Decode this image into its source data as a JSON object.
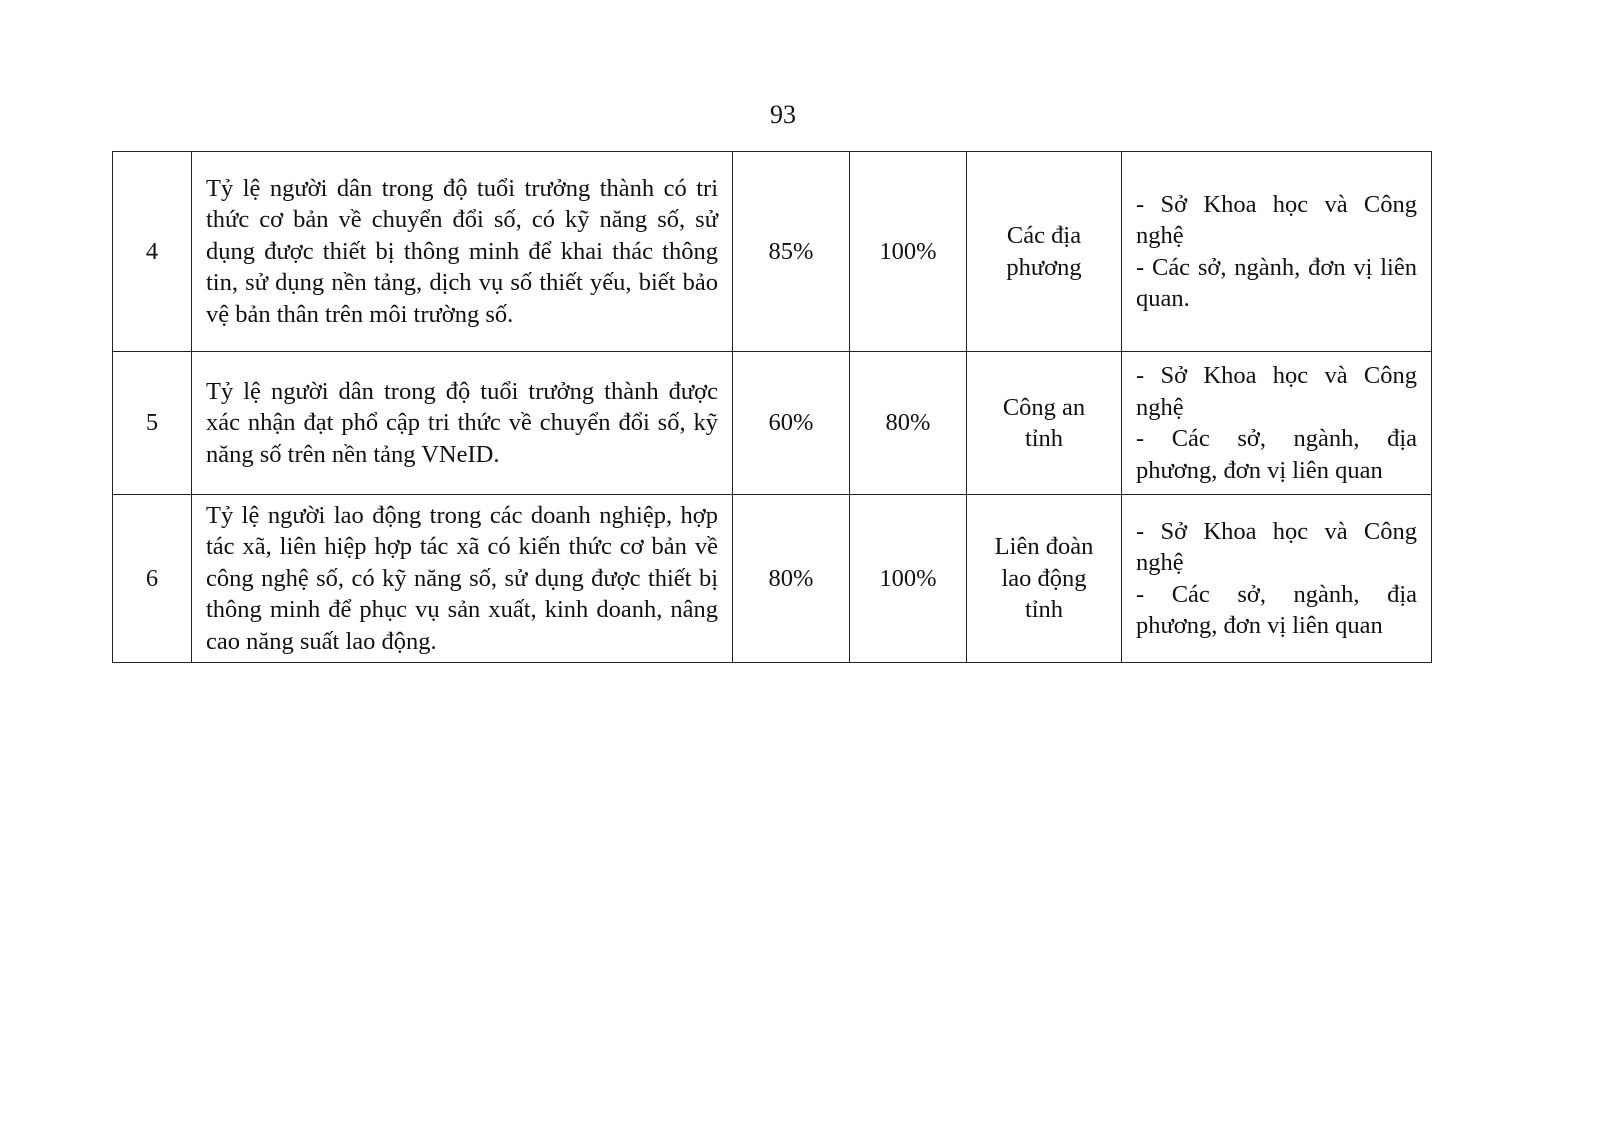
{
  "page_number": "93",
  "rows": [
    {
      "no": "4",
      "indicator": "Tỷ lệ người dân trong độ tuổi trưởng thành có tri thức cơ bản về chuyển đổi số, có kỹ năng số, sử dụng được thiết bị thông minh để khai thác thông tin, sử dụng nền tảng, dịch vụ số thiết yếu, biết bảo vệ bản thân trên môi trường số.",
      "value_1": "85%",
      "value_2": "100%",
      "lead": "Các địa phương",
      "coordinators": [
        "- Sở Khoa học và Công nghệ",
        "- Các sở, ngành, đơn vị liên quan."
      ]
    },
    {
      "no": "5",
      "indicator": "Tỷ lệ người dân trong độ tuổi trưởng thành được xác nhận đạt phổ cập tri thức về chuyển đổi số, kỹ năng số trên nền tảng VNeID.",
      "value_1": "60%",
      "value_2": "80%",
      "lead": "Công an tỉnh",
      "coordinators": [
        "- Sở Khoa học và Công nghệ",
        "- Các sở, ngành, địa phương, đơn vị liên quan"
      ]
    },
    {
      "no": "6",
      "indicator": "Tỷ lệ người lao động trong các doanh nghiệp, hợp tác xã, liên hiệp hợp tác xã có kiến thức cơ bản về công nghệ số, có kỹ năng số, sử dụng được thiết bị thông minh để phục vụ sản xuất, kinh doanh, nâng cao năng suất lao động.",
      "value_1": "80%",
      "value_2": "100%",
      "lead": "Liên đoàn lao động tỉnh",
      "coordinators": [
        "- Sở Khoa học và Công nghệ",
        "- Các sở, ngành, địa phương, đơn vị liên quan"
      ]
    }
  ]
}
